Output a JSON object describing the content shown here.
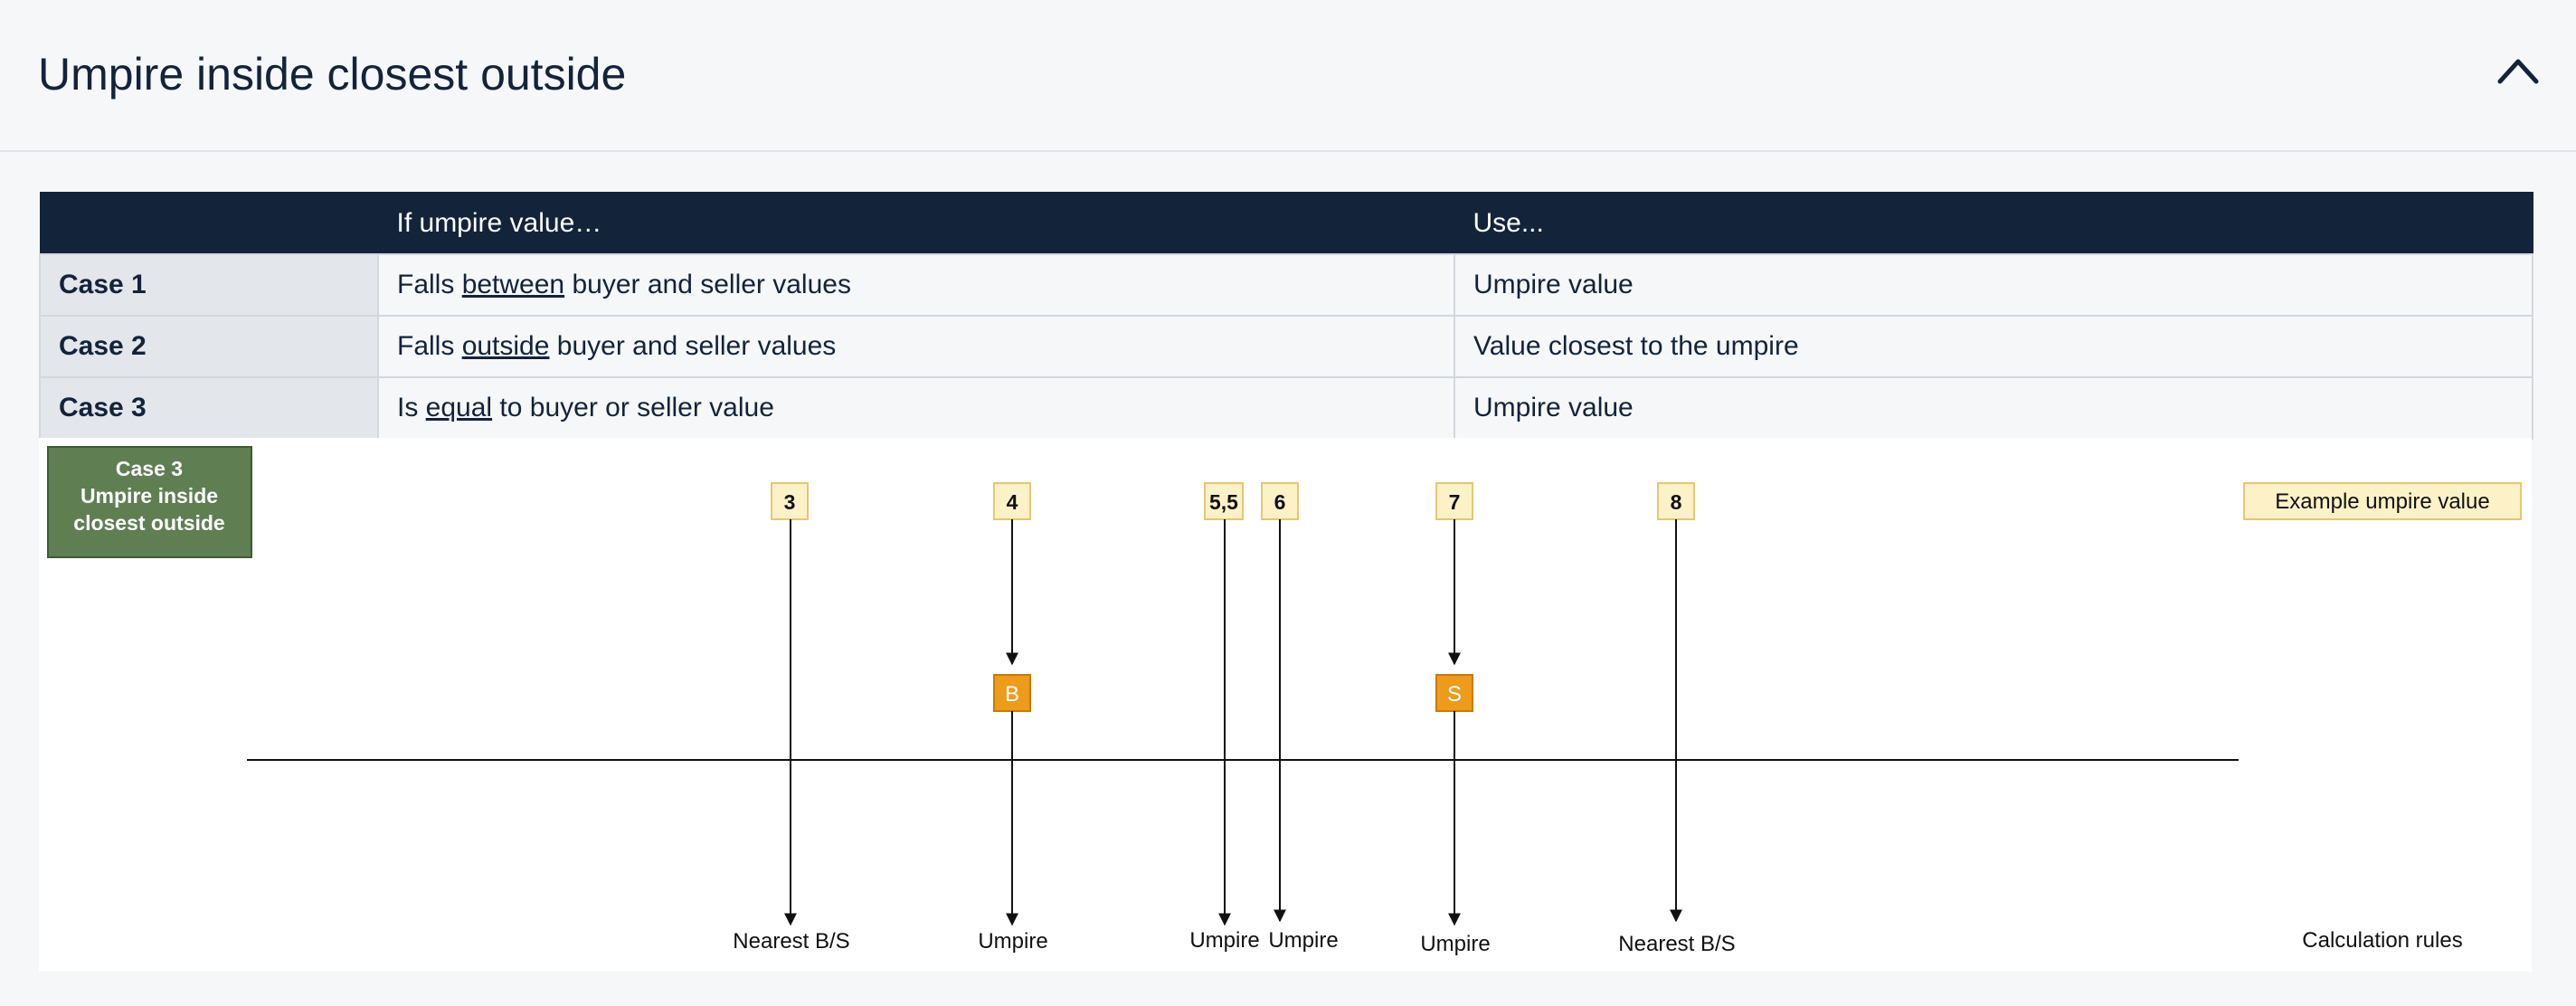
{
  "header": {
    "title": "Umpire inside closest outside"
  },
  "table": {
    "columns": [
      "",
      "If umpire value…",
      "Use..."
    ],
    "rows": [
      {
        "case": "Case 1",
        "pre": "Falls ",
        "keyword": "between",
        "post": " buyer and seller values",
        "use": "Umpire value"
      },
      {
        "case": "Case 2",
        "pre": "Falls ",
        "keyword": "outside",
        "post": " buyer and seller values",
        "use": "Value closest to the umpire"
      },
      {
        "case": "Case 3",
        "pre": "Is ",
        "keyword": "equal",
        "post": " to buyer or seller value",
        "use": "Umpire value"
      }
    ]
  },
  "diagram": {
    "case_box": {
      "lines": [
        "Case 3",
        "Umpire inside",
        "closest outside"
      ],
      "color": "#5f7f53"
    },
    "legend_label": "Example umpire value",
    "footer_label": "Calculation rules",
    "umpire_values": [
      {
        "label": "3",
        "result": "Nearest B/S"
      },
      {
        "label": "4",
        "marker": "B",
        "result": "Umpire"
      },
      {
        "label": "5,5",
        "result": "Umpire"
      },
      {
        "label": "6",
        "result": "Umpire"
      },
      {
        "label": "7",
        "marker": "S",
        "result": "Umpire"
      },
      {
        "label": "8",
        "result": "Nearest B/S"
      }
    ],
    "colors": {
      "value_box_fill": "#fdf1c8",
      "value_box_stroke": "#e3c873",
      "marker_fill": "#ed9b1a"
    }
  }
}
